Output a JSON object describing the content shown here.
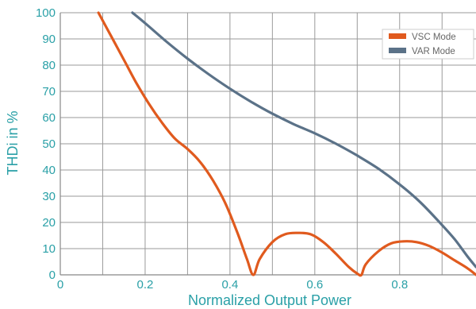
{
  "chart_data": {
    "type": "line",
    "xlabel": "Normalized Output Power",
    "ylabel": "THDi in %",
    "xlim": [
      0,
      0.98
    ],
    "ylim": [
      0,
      100
    ],
    "xticks": [
      0,
      0.2,
      0.4,
      0.6,
      0.8
    ],
    "xtick_labels": [
      "0",
      "0.2",
      "0.4",
      "0.6",
      "0.8"
    ],
    "yticks": [
      0,
      10,
      20,
      30,
      40,
      50,
      60,
      70,
      80,
      90,
      100
    ],
    "ytick_labels": [
      "0",
      "10",
      "20",
      "30",
      "40",
      "50",
      "60",
      "70",
      "80",
      "90",
      "100"
    ],
    "grid": true,
    "legend_position": "top-right",
    "series": [
      {
        "name": "VSC Mode",
        "color": "#e05a1e",
        "x": [
          0.09,
          0.12,
          0.15,
          0.18,
          0.21,
          0.24,
          0.27,
          0.3,
          0.33,
          0.36,
          0.39,
          0.42,
          0.44,
          0.455,
          0.47,
          0.5,
          0.53,
          0.56,
          0.59,
          0.62,
          0.65,
          0.68,
          0.7,
          0.71,
          0.72,
          0.75,
          0.78,
          0.81,
          0.84,
          0.87,
          0.9,
          0.93,
          0.96,
          0.98
        ],
        "y": [
          100,
          91,
          82,
          73,
          65,
          58,
          52,
          48,
          43,
          36,
          27,
          15,
          6,
          0,
          6,
          12.5,
          15.5,
          16,
          15.5,
          12.5,
          8,
          3,
          0.5,
          0,
          4,
          9,
          12,
          12.8,
          12.5,
          11,
          8.5,
          5.5,
          2.5,
          0
        ]
      },
      {
        "name": "VAR Mode",
        "color": "#5b7288",
        "x": [
          0.17,
          0.2,
          0.25,
          0.3,
          0.35,
          0.4,
          0.45,
          0.5,
          0.55,
          0.6,
          0.65,
          0.7,
          0.75,
          0.8,
          0.85,
          0.9,
          0.93,
          0.96,
          0.98
        ],
        "y": [
          100,
          96,
          89,
          82.5,
          76.5,
          71,
          66,
          61.5,
          57.5,
          54,
          50,
          45.5,
          40.5,
          34.5,
          27.5,
          19,
          13.5,
          7,
          3
        ]
      }
    ]
  }
}
